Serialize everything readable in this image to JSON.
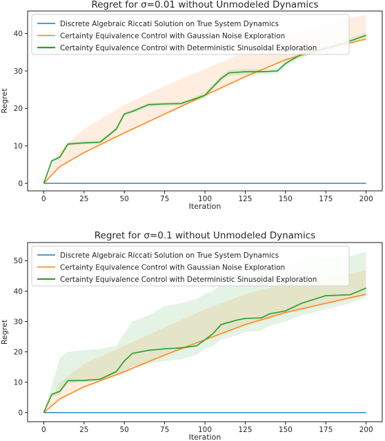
{
  "chart_data": [
    {
      "type": "line",
      "title": "Regret for σ=0.01 without Unmodeled Dynamics",
      "xlabel": "Iteration",
      "ylabel": "Regret",
      "xlim": [
        -10,
        210
      ],
      "ylim": [
        -2,
        46
      ],
      "xticks": [
        0,
        25,
        50,
        75,
        100,
        125,
        150,
        175,
        200
      ],
      "yticks": [
        0,
        10,
        20,
        30,
        40
      ],
      "grid": false,
      "legend_position": "top-left",
      "series": [
        {
          "name": "Discrete Algebraic Riccati Solution on True System Dynamics",
          "color": "#1f77b4",
          "x": [
            0,
            200
          ],
          "y": [
            0,
            0
          ]
        },
        {
          "name": "Certainty Equivalence Control with Gaussian Noise Exploration",
          "color": "#ff7f0e",
          "x": [
            0,
            10,
            25,
            50,
            75,
            100,
            125,
            150,
            175,
            200
          ],
          "y": [
            0,
            4.5,
            8.2,
            13.5,
            18.5,
            23.5,
            28.5,
            33,
            36,
            38.5
          ],
          "band_upper": [
            0,
            9,
            14.5,
            21,
            26,
            30.5,
            35,
            39.5,
            42.5,
            45
          ],
          "band_lower": [
            0,
            4,
            8,
            13,
            18.2,
            23,
            28,
            32.5,
            35.5,
            38.5
          ]
        },
        {
          "name": "Certainty Equivalence Control with Deterministic Sinusoidal Exploration",
          "color": "#2ca02c",
          "x": [
            0,
            5,
            10,
            15,
            25,
            35,
            45,
            50,
            55,
            65,
            75,
            85,
            90,
            100,
            110,
            115,
            125,
            135,
            145,
            150,
            160,
            175,
            190,
            200
          ],
          "y": [
            0,
            6,
            7,
            10.5,
            10.8,
            11,
            14.5,
            18.5,
            19.2,
            21,
            21.2,
            21.3,
            22,
            23.5,
            28,
            29.5,
            29.8,
            29.8,
            30,
            32,
            34.5,
            36,
            38,
            39.5
          ],
          "band_upper": [
            0,
            6.5,
            7.5,
            11,
            11.2,
            11.5,
            15,
            19,
            19.7,
            21.5,
            21.7,
            21.8,
            22.5,
            24.3,
            28.7,
            30.3,
            30.6,
            30.6,
            30.8,
            32.8,
            35.3,
            36.8,
            38.8,
            40.3
          ],
          "band_lower": [
            0,
            5.5,
            6.5,
            10,
            10.4,
            10.5,
            14,
            18,
            18.7,
            20.5,
            20.7,
            20.8,
            21.5,
            22.7,
            27.3,
            28.7,
            29,
            29,
            29.2,
            31.2,
            33.7,
            35.2,
            37.2,
            38.7
          ]
        }
      ]
    },
    {
      "type": "line",
      "title": "Regret for σ=0.1 without Unmodeled Dynamics",
      "xlabel": "Iteration",
      "ylabel": "Regret",
      "xlim": [
        -10,
        210
      ],
      "ylim": [
        -3,
        56
      ],
      "xticks": [
        0,
        25,
        50,
        75,
        100,
        125,
        150,
        175,
        200
      ],
      "yticks": [
        0,
        10,
        20,
        30,
        40,
        50
      ],
      "grid": false,
      "legend_position": "top-left",
      "series": [
        {
          "name": "Discrete Algebraic Riccati Solution on True System Dynamics",
          "color": "#1f77b4",
          "x": [
            0,
            200
          ],
          "y": [
            0,
            0
          ]
        },
        {
          "name": "Certainty Equivalence Control with Gaussian Noise Exploration",
          "color": "#ff7f0e",
          "x": [
            0,
            10,
            25,
            50,
            75,
            100,
            125,
            150,
            175,
            200
          ],
          "y": [
            0,
            4.5,
            8.5,
            13.5,
            19,
            24,
            29,
            33,
            36,
            39
          ],
          "band_upper": [
            0,
            10,
            16,
            22,
            28,
            34,
            39,
            42.5,
            44,
            47
          ],
          "band_lower": [
            0,
            4,
            8,
            13,
            18.5,
            23.5,
            28.5,
            32.5,
            35.5,
            38.5
          ]
        },
        {
          "name": "Certainty Equivalence Control with Deterministic Sinusoidal Exploration",
          "color": "#2ca02c",
          "x": [
            0,
            5,
            10,
            15,
            25,
            35,
            45,
            50,
            55,
            65,
            75,
            85,
            95,
            100,
            105,
            110,
            120,
            125,
            135,
            140,
            150,
            160,
            175,
            190,
            200
          ],
          "y": [
            0,
            6,
            7,
            10.5,
            10.6,
            11,
            13.5,
            17,
            19.5,
            20.5,
            21,
            21.3,
            22,
            24,
            26,
            29,
            30.5,
            31,
            31.2,
            32.5,
            33.5,
            36,
            38.5,
            38.8,
            41
          ],
          "band_upper": [
            0,
            9,
            18,
            20,
            20.5,
            21,
            22,
            26,
            30,
            32,
            35,
            36,
            37.5,
            39,
            40,
            42,
            43,
            44,
            44.5,
            46,
            48,
            50,
            51,
            51.5,
            53
          ],
          "band_lower": [
            0,
            5,
            6,
            9.5,
            10,
            10.5,
            12.5,
            14,
            15,
            16,
            17,
            17.5,
            19,
            21,
            22,
            24,
            25.5,
            26.5,
            27,
            28.5,
            30,
            32,
            34,
            36,
            38
          ]
        }
      ]
    }
  ]
}
